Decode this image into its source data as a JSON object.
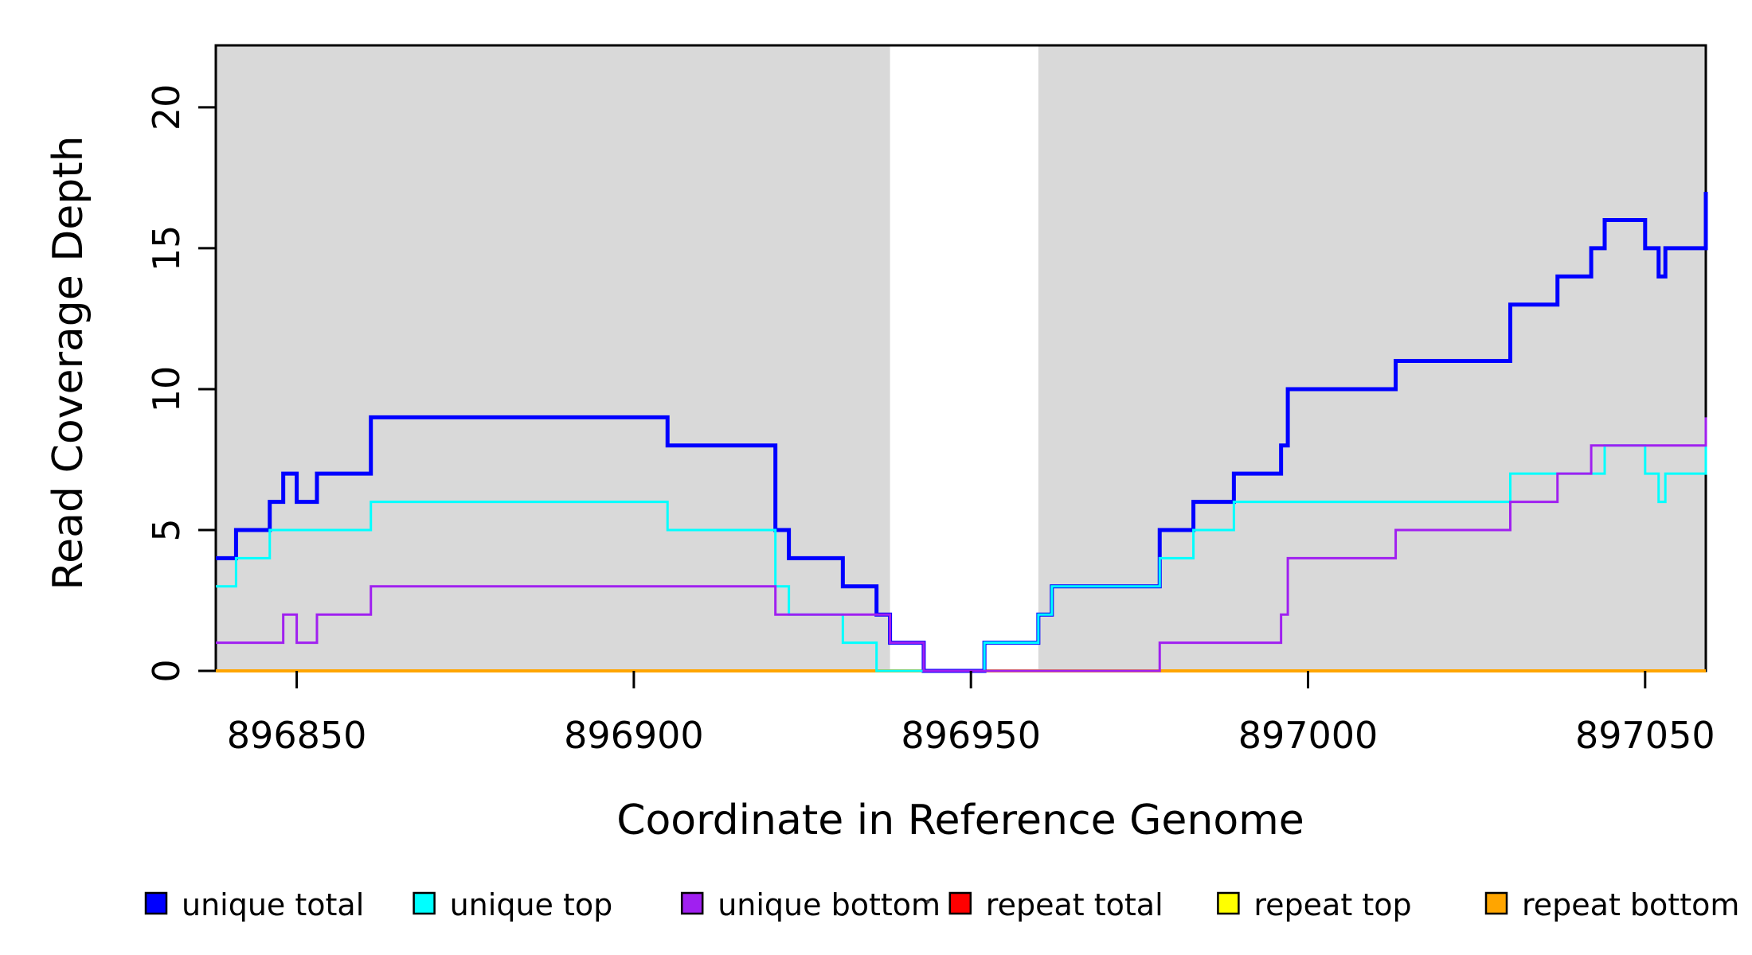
{
  "chart_data": {
    "type": "step-line",
    "title": "",
    "xlabel": "Coordinate in Reference Genome",
    "ylabel": "Read Coverage Depth",
    "xlim": [
      896838,
      897059
    ],
    "ylim": [
      0,
      22.2
    ],
    "x_ticks": [
      896850,
      896900,
      896950,
      897000,
      897050
    ],
    "y_ticks": [
      0,
      5,
      10,
      15,
      20
    ],
    "grid": false,
    "plot_bg": "#FFFFFF",
    "shade_color": "#D9D9D9",
    "shaded_regions": [
      {
        "x0": 896838,
        "x1": 896938
      },
      {
        "x0": 896960,
        "x1": 897059
      }
    ],
    "series": [
      {
        "name": "repeat total",
        "color": "#FF0000",
        "lw": 4,
        "steps": [
          [
            896838,
            0
          ]
        ]
      },
      {
        "name": "repeat top",
        "color": "#FFFF00",
        "lw": 4,
        "steps": [
          [
            896838,
            0
          ]
        ]
      },
      {
        "name": "repeat bottom",
        "color": "#FFA500",
        "lw": 4,
        "steps": [
          [
            896838,
            0
          ]
        ]
      },
      {
        "name": "unique total",
        "color": "#0000FF",
        "lw": 5,
        "steps": [
          [
            896838,
            4
          ],
          [
            896841,
            5
          ],
          [
            896846,
            6
          ],
          [
            896848,
            7
          ],
          [
            896850,
            6
          ],
          [
            896853,
            7
          ],
          [
            896861,
            9
          ],
          [
            896905,
            8
          ],
          [
            896921,
            5
          ],
          [
            896923,
            4
          ],
          [
            896931,
            3
          ],
          [
            896936,
            2
          ],
          [
            896938,
            1
          ],
          [
            896943,
            0
          ],
          [
            896952,
            1
          ],
          [
            896960,
            2
          ],
          [
            896962,
            3
          ],
          [
            896978,
            5
          ],
          [
            896983,
            6
          ],
          [
            896989,
            7
          ],
          [
            896996,
            8
          ],
          [
            896997,
            10
          ],
          [
            897013,
            11
          ],
          [
            897030,
            13
          ],
          [
            897037,
            14
          ],
          [
            897042,
            15
          ],
          [
            897044,
            16
          ],
          [
            897050,
            15
          ],
          [
            897052,
            14
          ],
          [
            897053,
            15
          ],
          [
            897059,
            17
          ]
        ]
      },
      {
        "name": "unique top",
        "color": "#00FFFF",
        "lw": 3,
        "steps": [
          [
            896838,
            3
          ],
          [
            896841,
            4
          ],
          [
            896846,
            5
          ],
          [
            896861,
            6
          ],
          [
            896905,
            5
          ],
          [
            896921,
            3
          ],
          [
            896923,
            2
          ],
          [
            896931,
            1
          ],
          [
            896936,
            0
          ],
          [
            896952,
            1
          ],
          [
            896960,
            2
          ],
          [
            896962,
            3
          ],
          [
            896978,
            4
          ],
          [
            896983,
            5
          ],
          [
            896989,
            6
          ],
          [
            897030,
            7
          ],
          [
            897044,
            8
          ],
          [
            897050,
            7
          ],
          [
            897052,
            6
          ],
          [
            897053,
            7
          ],
          [
            897059,
            8
          ]
        ]
      },
      {
        "name": "unique bottom",
        "color": "#A020F0",
        "lw": 3,
        "steps": [
          [
            896838,
            1
          ],
          [
            896848,
            2
          ],
          [
            896850,
            1
          ],
          [
            896853,
            2
          ],
          [
            896861,
            3
          ],
          [
            896921,
            2
          ],
          [
            896938,
            1
          ],
          [
            896943,
            0
          ],
          [
            896978,
            1
          ],
          [
            896996,
            2
          ],
          [
            896997,
            4
          ],
          [
            897013,
            5
          ],
          [
            897030,
            6
          ],
          [
            897037,
            7
          ],
          [
            897042,
            8
          ],
          [
            897059,
            9
          ]
        ]
      }
    ],
    "legend": {
      "position": "bottom",
      "entries": [
        {
          "label": "unique total",
          "color": "#0000FF"
        },
        {
          "label": "unique top",
          "color": "#00FFFF"
        },
        {
          "label": "unique bottom",
          "color": "#A020F0"
        },
        {
          "label": "repeat total",
          "color": "#FF0000"
        },
        {
          "label": "repeat top",
          "color": "#FFFF00"
        },
        {
          "label": "repeat bottom",
          "color": "#FFA500"
        }
      ]
    },
    "axis_color": "#000000"
  }
}
